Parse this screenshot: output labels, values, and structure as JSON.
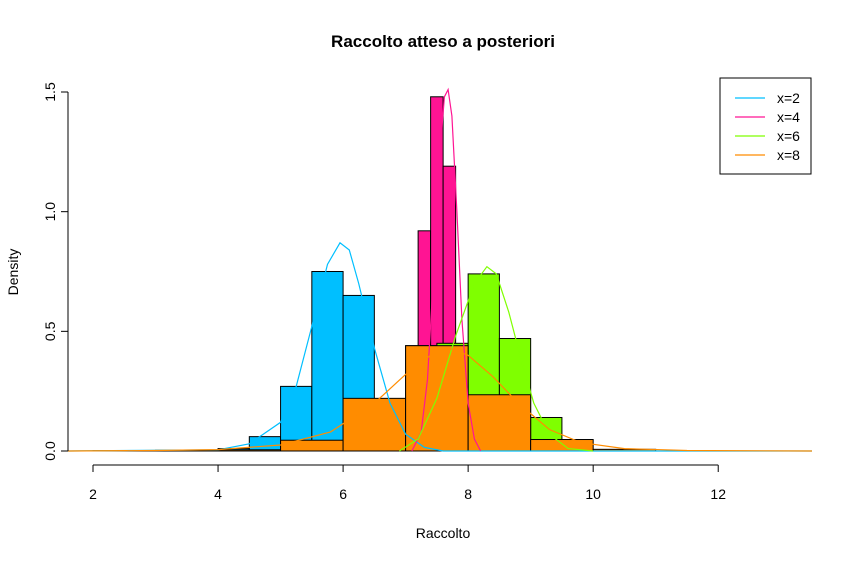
{
  "chart_data": {
    "type": "bar",
    "title": "Raccolto atteso a posteriori",
    "xlabel": "Raccolto",
    "ylabel": "Density",
    "xlim": [
      1.6,
      13.5
    ],
    "ylim": [
      0,
      1.5
    ],
    "x_ticks": [
      2,
      4,
      6,
      8,
      10,
      12
    ],
    "y_ticks": [
      0.0,
      0.5,
      1.0,
      1.5
    ],
    "x_tick_labels": [
      "2",
      "4",
      "6",
      "8",
      "10",
      "12"
    ],
    "y_tick_labels": [
      "0.0",
      "0.5",
      "1.0",
      "1.5"
    ],
    "legend_position": "top-right",
    "series": [
      {
        "name": "x=2",
        "color": "#00BFFF",
        "histogram": [
          {
            "x0": 4.0,
            "x1": 4.5,
            "density": 0.01
          },
          {
            "x0": 4.5,
            "x1": 5.0,
            "density": 0.06
          },
          {
            "x0": 5.0,
            "x1": 5.5,
            "density": 0.27
          },
          {
            "x0": 5.5,
            "x1": 6.0,
            "density": 0.75
          },
          {
            "x0": 6.0,
            "x1": 6.5,
            "density": 0.65
          },
          {
            "x0": 6.5,
            "x1": 7.0,
            "density": 0.2
          },
          {
            "x0": 7.0,
            "x1": 7.5,
            "density": 0.05
          }
        ],
        "density_curve": [
          [
            1.6,
            0
          ],
          [
            4.0,
            0.005
          ],
          [
            4.5,
            0.03
          ],
          [
            5.0,
            0.12
          ],
          [
            5.25,
            0.27
          ],
          [
            5.5,
            0.52
          ],
          [
            5.75,
            0.78
          ],
          [
            5.95,
            0.87
          ],
          [
            6.1,
            0.84
          ],
          [
            6.25,
            0.7
          ],
          [
            6.5,
            0.43
          ],
          [
            6.75,
            0.2
          ],
          [
            7.0,
            0.07
          ],
          [
            7.3,
            0.015
          ],
          [
            7.6,
            0
          ],
          [
            13.5,
            0
          ]
        ]
      },
      {
        "name": "x=4",
        "color": "#FF1493",
        "histogram": [
          {
            "x0": 7.2,
            "x1": 7.4,
            "density": 0.92
          },
          {
            "x0": 7.4,
            "x1": 7.6,
            "density": 1.48
          },
          {
            "x0": 7.6,
            "x1": 7.8,
            "density": 1.19
          }
        ],
        "density_curve": [
          [
            7.1,
            0
          ],
          [
            7.25,
            0.08
          ],
          [
            7.35,
            0.3
          ],
          [
            7.45,
            0.75
          ],
          [
            7.55,
            1.25
          ],
          [
            7.62,
            1.48
          ],
          [
            7.68,
            1.51
          ],
          [
            7.74,
            1.4
          ],
          [
            7.82,
            1.0
          ],
          [
            7.9,
            0.55
          ],
          [
            8.0,
            0.2
          ],
          [
            8.1,
            0.05
          ],
          [
            8.2,
            0
          ]
        ]
      },
      {
        "name": "x=6",
        "color": "#7FFF00",
        "histogram": [
          {
            "x0": 7.0,
            "x1": 7.5,
            "density": 0.44
          },
          {
            "x0": 7.5,
            "x1": 8.0,
            "density": 0.45
          },
          {
            "x0": 8.0,
            "x1": 8.5,
            "density": 0.74
          },
          {
            "x0": 8.5,
            "x1": 9.0,
            "density": 0.47
          },
          {
            "x0": 9.0,
            "x1": 9.5,
            "density": 0.14
          }
        ],
        "density_curve": [
          [
            6.9,
            0
          ],
          [
            7.2,
            0.05
          ],
          [
            7.5,
            0.22
          ],
          [
            7.8,
            0.48
          ],
          [
            8.1,
            0.7
          ],
          [
            8.3,
            0.77
          ],
          [
            8.45,
            0.74
          ],
          [
            8.65,
            0.58
          ],
          [
            8.85,
            0.38
          ],
          [
            9.05,
            0.2
          ],
          [
            9.3,
            0.07
          ],
          [
            9.6,
            0.01
          ],
          [
            10.0,
            0
          ]
        ]
      },
      {
        "name": "x=8",
        "color": "#FF8C00",
        "histogram": [
          {
            "x0": 2.0,
            "x1": 3.0,
            "density": 0.001
          },
          {
            "x0": 3.0,
            "x1": 4.0,
            "density": 0.003
          },
          {
            "x0": 4.0,
            "x1": 5.0,
            "density": 0.005
          },
          {
            "x0": 5.0,
            "x1": 6.0,
            "density": 0.045
          },
          {
            "x0": 6.0,
            "x1": 7.0,
            "density": 0.22
          },
          {
            "x0": 7.0,
            "x1": 8.0,
            "density": 0.44
          },
          {
            "x0": 8.0,
            "x1": 9.0,
            "density": 0.235
          },
          {
            "x0": 9.0,
            "x1": 10.0,
            "density": 0.048
          },
          {
            "x0": 10.0,
            "x1": 11.0,
            "density": 0.007
          }
        ],
        "density_curve": [
          [
            1.6,
            0
          ],
          [
            3.0,
            0.002
          ],
          [
            4.0,
            0.006
          ],
          [
            5.0,
            0.025
          ],
          [
            5.8,
            0.08
          ],
          [
            6.5,
            0.2
          ],
          [
            7.0,
            0.32
          ],
          [
            7.4,
            0.4
          ],
          [
            7.7,
            0.43
          ],
          [
            8.0,
            0.4
          ],
          [
            8.4,
            0.31
          ],
          [
            8.8,
            0.2
          ],
          [
            9.3,
            0.09
          ],
          [
            9.8,
            0.035
          ],
          [
            10.5,
            0.01
          ],
          [
            11.5,
            0.002
          ],
          [
            13.5,
            0
          ]
        ]
      }
    ]
  }
}
